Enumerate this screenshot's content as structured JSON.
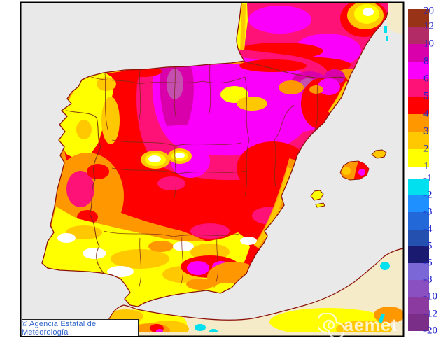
{
  "map": {
    "attribution": "© Agencia Estatal de Meteorología",
    "watermark": "aemet"
  },
  "colorbar": {
    "positive_labels": [
      "20",
      "12",
      "10",
      "8",
      "6",
      "5",
      "4",
      "3",
      "2",
      "1"
    ],
    "positive_colors": [
      "#993317",
      "#B22B66",
      "#D900AC",
      "#FA00FA",
      "#FF1278",
      "#FF0000",
      "#FF9800",
      "#FFC800",
      "#FFFF00"
    ],
    "negative_labels": [
      "-1",
      "-2",
      "-3",
      "-4",
      "-5",
      "-6",
      "-8",
      "-10",
      "-12",
      "-20"
    ],
    "negative_colors": [
      "#00E0EE",
      "#1E90FF",
      "#2268D8",
      "#2450B0",
      "#1A1A70",
      "#7B68D6",
      "#8A4FC0",
      "#8B3AA0",
      "#7B2E88"
    ]
  },
  "palette": {
    "sea": "#E9E9E9",
    "land_nodata": "#F6EBC8",
    "coast": "#8B1208",
    "border": "#7B2A18",
    "yellow": "#FFFF00",
    "gold": "#FFC800",
    "orange": "#FF9800",
    "red": "#FF0000",
    "pink": "#FF1278",
    "magenta": "#FA00FA",
    "magenta_dark": "#D900AC",
    "plum": "#C44FB0",
    "white": "#FFFFFF",
    "cyan": "#00E0EE",
    "label_blue": "#2222CC",
    "attribution_blue": "#3366CC"
  }
}
